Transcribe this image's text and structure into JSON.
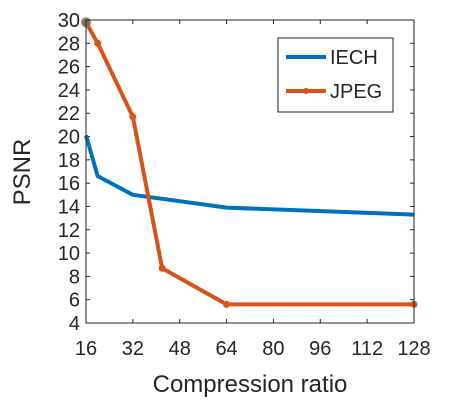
{
  "chart_data": {
    "type": "line",
    "title": "",
    "xlabel": "Compression ratio",
    "ylabel": "PSNR",
    "xlim": [
      16,
      128
    ],
    "ylim": [
      4,
      30
    ],
    "xticks": [
      16,
      32,
      48,
      64,
      80,
      96,
      112,
      128
    ],
    "yticks": [
      4,
      6,
      8,
      10,
      12,
      14,
      16,
      18,
      20,
      22,
      24,
      26,
      28,
      30
    ],
    "grid": false,
    "legend_position": "top-right",
    "series": [
      {
        "name": "IECH",
        "color": "#0072BD",
        "marker": "none",
        "x": [
          16,
          20,
          32,
          64,
          128
        ],
        "y": [
          20.1,
          16.6,
          15.0,
          13.9,
          13.3
        ]
      },
      {
        "name": "JPEG",
        "color": "#D95319",
        "marker": "circle",
        "x": [
          16,
          20,
          32,
          42,
          64,
          128
        ],
        "y": [
          29.8,
          28.0,
          21.7,
          8.7,
          5.6,
          5.6
        ]
      }
    ]
  }
}
